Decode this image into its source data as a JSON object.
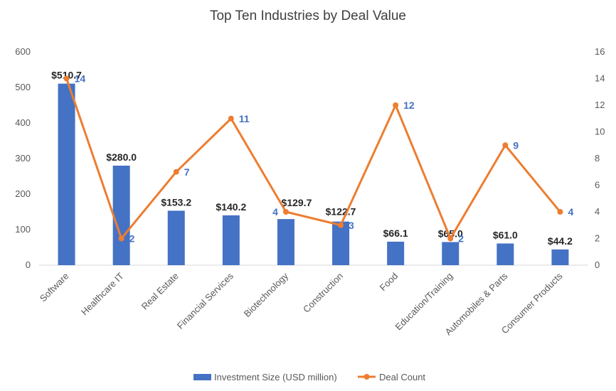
{
  "chart_data": {
    "type": "bar",
    "title": "Top Ten Industries by Deal Value",
    "categories": [
      "Software",
      "Healthcare IT",
      "Real Estate",
      "Financial Services",
      "Biotechnology",
      "Construction",
      "Food",
      "Education/Training",
      "Automobiles & Parts",
      "Consumer Products"
    ],
    "series": [
      {
        "name": "Investment Size (USD million)",
        "type": "bar",
        "axis": "left",
        "color": "#4472c4",
        "values": [
          510.7,
          280.0,
          153.2,
          140.2,
          129.7,
          122.7,
          66.1,
          65.0,
          61.0,
          44.2
        ],
        "labels": [
          "$510.7",
          "$280.0",
          "$153.2",
          "$140.2",
          "$129.7",
          "$122.7",
          "$66.1",
          "$65.0",
          "$61.0",
          "$44.2"
        ]
      },
      {
        "name": "Deal Count",
        "type": "line",
        "axis": "right",
        "color": "#ed7d31",
        "values": [
          14,
          2,
          7,
          11,
          4,
          3,
          12,
          2,
          9,
          4
        ],
        "labels": [
          "14",
          "2",
          "7",
          "11",
          "4",
          "3",
          "12",
          "2",
          "9",
          "4"
        ]
      }
    ],
    "y_left": {
      "min": 0,
      "max": 600,
      "ticks": [
        "0",
        "100",
        "200",
        "300",
        "400",
        "500",
        "600"
      ]
    },
    "y_right": {
      "min": 0,
      "max": 16,
      "ticks": [
        "0",
        "2",
        "4",
        "6",
        "8",
        "10",
        "12",
        "14",
        "16"
      ]
    },
    "grid": false,
    "legend_position": "bottom"
  }
}
